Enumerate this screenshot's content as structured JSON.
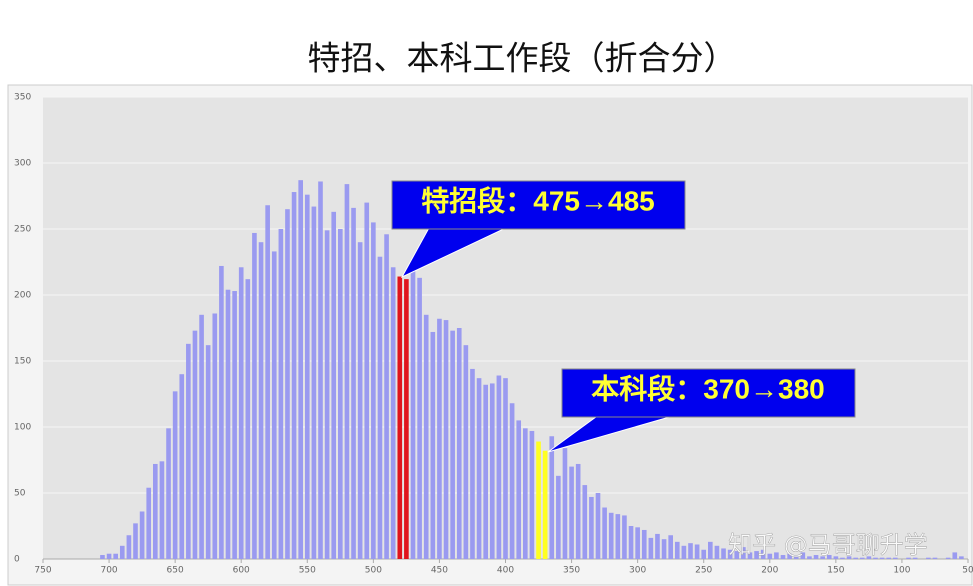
{
  "chart_data": {
    "type": "bar",
    "title": "特招、本科工作段（折合分）",
    "annotations": [
      "特招段：475→485",
      "本科段：370→380"
    ],
    "watermark": "知乎 @马哥聊升学",
    "x": [
      705,
      700,
      695,
      690,
      685,
      680,
      675,
      670,
      665,
      660,
      655,
      650,
      645,
      640,
      635,
      630,
      625,
      620,
      615,
      610,
      605,
      600,
      595,
      590,
      585,
      580,
      575,
      570,
      565,
      560,
      555,
      550,
      545,
      540,
      535,
      530,
      525,
      520,
      515,
      510,
      505,
      500,
      495,
      490,
      485,
      480,
      475,
      470,
      465,
      460,
      455,
      450,
      445,
      440,
      435,
      430,
      425,
      420,
      415,
      410,
      405,
      400,
      395,
      390,
      385,
      380,
      375,
      370,
      365,
      360,
      355,
      350,
      345,
      340,
      335,
      330,
      325,
      320,
      315,
      310,
      305,
      300,
      295,
      290,
      285,
      280,
      275,
      270,
      265,
      260,
      255,
      250,
      245,
      240,
      235,
      230,
      225,
      220,
      215,
      210,
      205,
      200,
      195,
      190,
      185,
      180,
      175,
      170,
      165,
      160,
      155,
      150,
      145,
      140,
      135,
      130,
      125,
      120,
      115,
      110,
      105,
      100,
      95,
      90,
      85,
      80,
      75,
      70,
      65,
      60,
      55
    ],
    "values": [
      3,
      4,
      4,
      10,
      18,
      27,
      36,
      54,
      72,
      74,
      99,
      127,
      140,
      163,
      173,
      185,
      162,
      186,
      222,
      204,
      203,
      221,
      212,
      247,
      240,
      268,
      233,
      250,
      265,
      278,
      287,
      276,
      267,
      286,
      249,
      263,
      250,
      284,
      266,
      240,
      270,
      255,
      229,
      246,
      221,
      214,
      212,
      220,
      213,
      185,
      172,
      182,
      181,
      173,
      175,
      162,
      144,
      137,
      132,
      133,
      139,
      137,
      118,
      105,
      99,
      97,
      89,
      82,
      93,
      63,
      84,
      70,
      72,
      56,
      47,
      50,
      39,
      35,
      34,
      33,
      25,
      24,
      22,
      16,
      19,
      15,
      18,
      13,
      10,
      12,
      11,
      7,
      13,
      10,
      8,
      7,
      6,
      9,
      5,
      6,
      7,
      4,
      5,
      3,
      4,
      3,
      5,
      2,
      3,
      2,
      3,
      2,
      1,
      2,
      1,
      1,
      2,
      1,
      1,
      1,
      1,
      0,
      1,
      1,
      0,
      1,
      1,
      0,
      1,
      5,
      2
    ],
    "colors": [
      "#9a9af0",
      "#9a9af0",
      "#9a9af0",
      "#9a9af0",
      "#9a9af0",
      "#9a9af0",
      "#9a9af0",
      "#9a9af0",
      "#9a9af0",
      "#9a9af0",
      "#9a9af0",
      "#9a9af0",
      "#9a9af0",
      "#9a9af0",
      "#9a9af0",
      "#9a9af0",
      "#9a9af0",
      "#9a9af0",
      "#9a9af0",
      "#9a9af0",
      "#9a9af0",
      "#9a9af0",
      "#9a9af0",
      "#9a9af0",
      "#9a9af0",
      "#9a9af0",
      "#9a9af0",
      "#9a9af0",
      "#9a9af0",
      "#9a9af0",
      "#9a9af0",
      "#9a9af0",
      "#9a9af0",
      "#9a9af0",
      "#9a9af0",
      "#9a9af0",
      "#9a9af0",
      "#9a9af0",
      "#9a9af0",
      "#9a9af0",
      "#9a9af0",
      "#9a9af0",
      "#9a9af0",
      "#9a9af0",
      "#9a9af0",
      "#e0141c",
      "#e0141c",
      "#9a9af0",
      "#9a9af0",
      "#9a9af0",
      "#9a9af0",
      "#9a9af0",
      "#9a9af0",
      "#9a9af0",
      "#9a9af0",
      "#9a9af0",
      "#9a9af0",
      "#9a9af0",
      "#9a9af0",
      "#9a9af0",
      "#9a9af0",
      "#9a9af0",
      "#9a9af0",
      "#9a9af0",
      "#9a9af0",
      "#9a9af0",
      "#ffff22",
      "#ffff22",
      "#9a9af0",
      "#9a9af0",
      "#9a9af0",
      "#9a9af0",
      "#9a9af0",
      "#9a9af0",
      "#9a9af0",
      "#9a9af0",
      "#9a9af0",
      "#9a9af0",
      "#9a9af0",
      "#9a9af0",
      "#9a9af0",
      "#9a9af0",
      "#9a9af0",
      "#9a9af0",
      "#9a9af0",
      "#9a9af0",
      "#9a9af0",
      "#9a9af0",
      "#9a9af0",
      "#9a9af0",
      "#9a9af0",
      "#9a9af0",
      "#9a9af0",
      "#9a9af0",
      "#9a9af0",
      "#9a9af0",
      "#9a9af0",
      "#9a9af0",
      "#9a9af0",
      "#9a9af0",
      "#9a9af0",
      "#9a9af0",
      "#9a9af0",
      "#9a9af0",
      "#9a9af0",
      "#9a9af0",
      "#9a9af0",
      "#9a9af0",
      "#9a9af0",
      "#9a9af0",
      "#9a9af0",
      "#9a9af0",
      "#9a9af0",
      "#9a9af0",
      "#9a9af0",
      "#9a9af0",
      "#9a9af0",
      "#9a9af0",
      "#9a9af0",
      "#9a9af0",
      "#9a9af0",
      "#9a9af0",
      "#9a9af0",
      "#9a9af0",
      "#9a9af0",
      "#9a9af0",
      "#9a9af0",
      "#9a9af0",
      "#9a9af0",
      "#9a9af0",
      "#9a9af0"
    ],
    "xlim": [
      750,
      50
    ],
    "xticks": [
      750,
      700,
      650,
      600,
      550,
      500,
      450,
      400,
      350,
      300,
      250,
      200,
      150,
      100,
      50
    ],
    "ylim": [
      0,
      350
    ],
    "yticks": [
      0,
      50,
      100,
      150,
      200,
      250,
      300,
      350
    ],
    "grid": true
  }
}
